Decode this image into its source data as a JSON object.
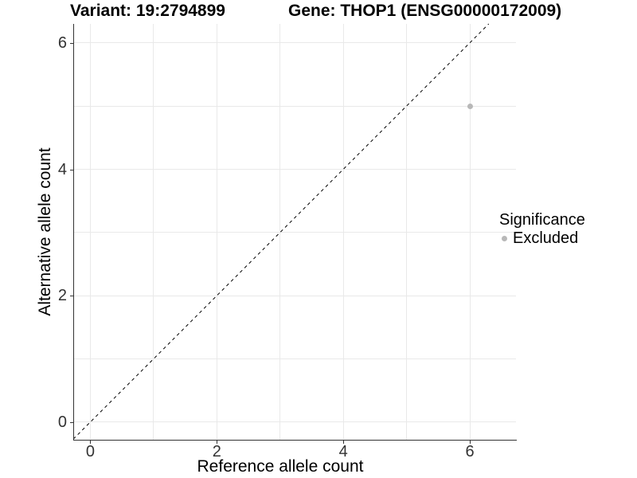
{
  "header": {
    "variant_title": "Variant: 19:2794899",
    "gene_title": "Gene: THOP1 (ENSG00000172009)"
  },
  "axes": {
    "x_label": "Reference allele count",
    "y_label": "Alternative allele count"
  },
  "legend": {
    "title": "Significance",
    "items": [
      {
        "label": "Excluded",
        "color": "#b8b8b8",
        "marker": "circle"
      }
    ]
  },
  "chart_data": {
    "type": "scatter",
    "title": "Variant: 19:2794899 / Gene: THOP1 (ENSG00000172009)",
    "xlabel": "Reference allele count",
    "ylabel": "Alternative allele count",
    "xlim": [
      -0.27,
      6.73
    ],
    "ylim": [
      -0.28,
      6.3
    ],
    "x_ticks": [
      0,
      2,
      4,
      6
    ],
    "y_ticks": [
      0,
      2,
      4,
      6
    ],
    "x_gridlines": [
      0,
      1,
      2,
      3,
      4,
      5,
      6
    ],
    "y_gridlines": [
      0,
      1,
      2,
      3,
      4,
      5,
      6
    ],
    "grid": true,
    "legend_position": "right-middle",
    "series": [
      {
        "name": "Excluded",
        "color": "#b8b8b8",
        "point_radius": 3,
        "points": [
          {
            "x": 6,
            "y": 5
          }
        ]
      }
    ],
    "reference_line": {
      "style": "dashed",
      "slope": 1,
      "intercept": 0,
      "color": "#000000",
      "dash": "4,4"
    }
  },
  "colors": {
    "background": "#ffffff",
    "grid": "#e9e9e9",
    "axis": "#333333",
    "tick_text": "#333333",
    "title_text": "#000000",
    "point": "#b8b8b8"
  }
}
